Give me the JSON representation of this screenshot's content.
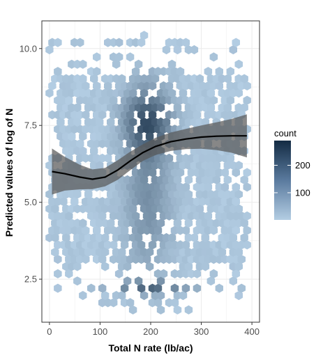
{
  "chart_data": {
    "type": "hexbin",
    "xlabel": "Total N rate (lb/ac)",
    "ylabel": "Predicted values of log of N",
    "xlim": [
      -15,
      415
    ],
    "ylim": [
      1.1,
      10.9
    ],
    "x_ticks": [
      0,
      100,
      200,
      300,
      400
    ],
    "x_tick_labels": [
      "0",
      "100",
      "200",
      "300",
      "400"
    ],
    "y_ticks": [
      2.5,
      5.0,
      7.5,
      10.0
    ],
    "y_tick_labels": [
      "2.5",
      "5.0",
      "7.5",
      "10.0"
    ],
    "grid": true,
    "legend": {
      "title": "count",
      "position": "right",
      "range": [
        1,
        290
      ],
      "ticks": [
        100,
        200
      ],
      "tick_labels": [
        "100",
        "200"
      ],
      "low_color": "#b3cde3",
      "high_color": "#132b43"
    },
    "density_mode": {
      "x": 195,
      "y": 7.6,
      "peak_count": 290
    },
    "y_spread_upper": 9.4,
    "y_spread_lower": 2.7,
    "smooth_line": {
      "x": [
        5,
        30,
        60,
        85,
        110,
        135,
        160,
        185,
        210,
        240,
        270,
        300,
        330,
        360,
        390
      ],
      "y": [
        6.0,
        5.93,
        5.82,
        5.75,
        5.82,
        6.05,
        6.35,
        6.62,
        6.82,
        6.97,
        7.06,
        7.12,
        7.15,
        7.16,
        7.16
      ],
      "ci_half_width": [
        0.75,
        0.55,
        0.4,
        0.32,
        0.3,
        0.32,
        0.3,
        0.27,
        0.28,
        0.3,
        0.33,
        0.38,
        0.45,
        0.55,
        0.7
      ]
    },
    "colors": {
      "panel_border": "#333333",
      "grid_major": "#ebebeb",
      "line": "#000000",
      "ribbon": "#595959"
    }
  }
}
